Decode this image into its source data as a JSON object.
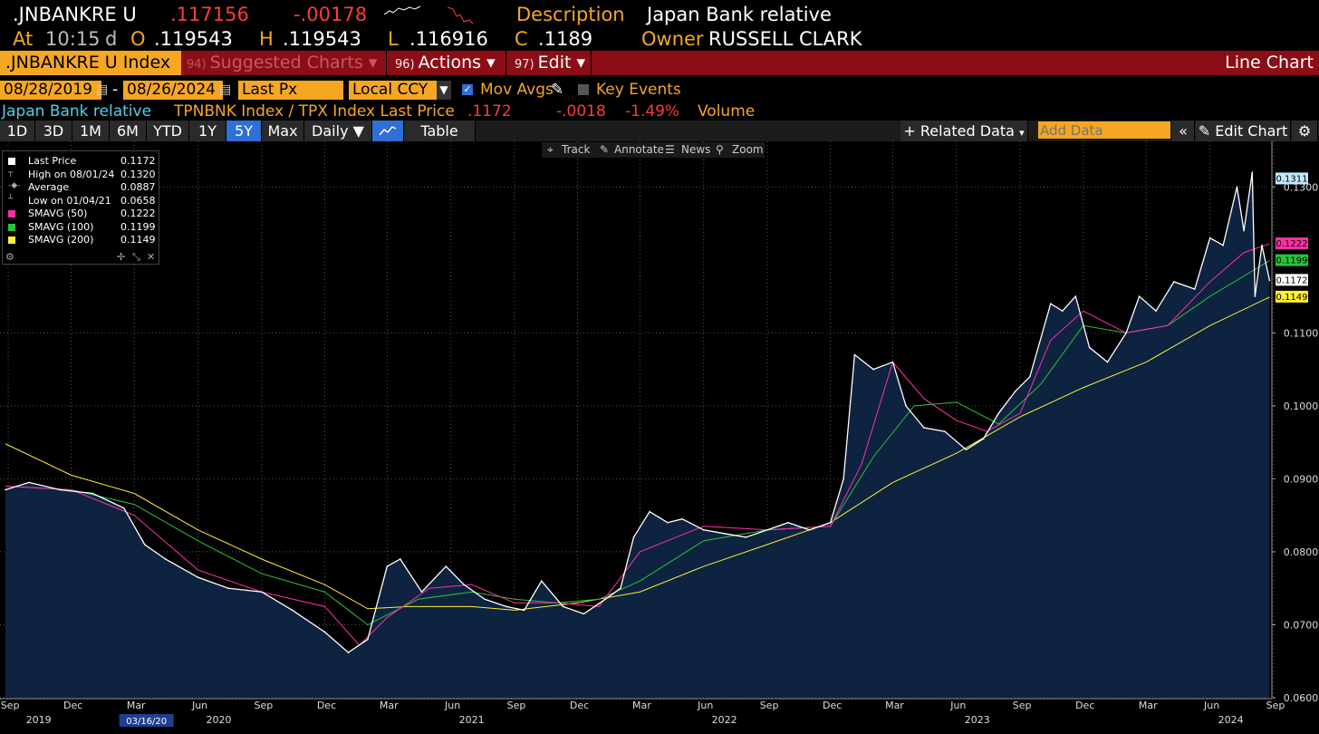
{
  "ticker": {
    "symbol": ".JNBANKRE U",
    "last": ".117156",
    "change": "-.00178",
    "desc_label": "Description",
    "desc_value": "Japan Bank relative",
    "at_label": "At",
    "time": "10:15",
    "time_suffix": "d",
    "open_label": "O",
    "open": ".119543",
    "high_label": "H",
    "high": ".119543",
    "low_label": "L",
    "low": ".116916",
    "close_label": "C",
    "close": ".1189",
    "owner_label": "Owner",
    "owner_value": "RUSSELL CLARK"
  },
  "menu": {
    "security": ".JNBANKRE U Index",
    "suggested_num": "94)",
    "suggested": "Suggested Charts",
    "actions_num": "96)",
    "actions": "Actions",
    "edit_num": "97)",
    "edit": "Edit",
    "chart_type": "Line Chart"
  },
  "controls": {
    "start_date": "08/28/2019",
    "date_sep": "-",
    "end_date": "08/26/2024",
    "field": "Last Px",
    "currency": "Local CCY",
    "mov_avgs": "Mov Avgs",
    "key_events": "Key Events"
  },
  "info": {
    "name": "Japan Bank relative",
    "formula": "TPNBNK Index / TPX Index Last Price",
    "last": ".1172",
    "change": "-.0018",
    "pct": "-1.49%",
    "volume": "Volume"
  },
  "toolbar": {
    "periods": [
      "1D",
      "3D",
      "1M",
      "6M",
      "YTD",
      "1Y",
      "5Y",
      "Max"
    ],
    "active_period": "5Y",
    "frequency": "Daily",
    "table": "Table",
    "related": "Related Data",
    "add_data_placeholder": "Add Data",
    "edit_chart": "Edit Chart"
  },
  "chart_tools": {
    "track": "Track",
    "annotate": "Annotate",
    "news": "News",
    "zoom": "Zoom"
  },
  "legend": [
    {
      "label": "Last Price",
      "value": "0.1172",
      "color": "#ffffff"
    },
    {
      "label": "High on 08/01/24",
      "value": "0.1320",
      "color": ""
    },
    {
      "label": "Average",
      "value": "0.0887",
      "color": ""
    },
    {
      "label": "Low on 01/04/21",
      "value": "0.0658",
      "color": ""
    },
    {
      "label": "SMAVG (50)",
      "value": "0.1222",
      "color": "#ff2fa8"
    },
    {
      "label": "SMAVG (100)",
      "value": "0.1199",
      "color": "#29c23b"
    },
    {
      "label": "SMAVG (200)",
      "value": "0.1149",
      "color": "#ffee33"
    }
  ],
  "colors": {
    "accent": "#f5a623",
    "menu_bg": "#8b0e17",
    "area_fill": "#0d2340",
    "price_line": "#ffffff",
    "sma50": "#ff2fa8",
    "sma100": "#29c23b",
    "sma200": "#ffee33",
    "negative": "#ff3b3b"
  },
  "chart_data": {
    "type": "line",
    "ylim": [
      0.06,
      0.135
    ],
    "yticks": [
      "0.0600",
      "0.0700",
      "0.0800",
      "0.0900",
      "0.1000",
      "0.1100",
      "0.1300"
    ],
    "ytick_values": [
      0.06,
      0.07,
      0.08,
      0.09,
      0.1,
      0.11,
      0.13
    ],
    "xticks": [
      "Sep",
      "Dec",
      "Mar",
      "Jun",
      "Sep",
      "Dec",
      "Mar",
      "Jun",
      "Sep",
      "Dec",
      "Mar",
      "Jun",
      "Sep",
      "Dec",
      "Mar",
      "Jun",
      "Sep",
      "Dec",
      "Mar",
      "Jun",
      "Sep"
    ],
    "xtick_dates": [
      "2019-09-01",
      "2019-12-01",
      "2020-03-01",
      "2020-06-01",
      "2020-09-01",
      "2020-12-01",
      "2021-03-01",
      "2021-06-01",
      "2021-09-01",
      "2021-12-01",
      "2022-03-01",
      "2022-06-01",
      "2022-09-01",
      "2022-12-01",
      "2023-03-01",
      "2023-06-01",
      "2023-09-01",
      "2023-12-01",
      "2024-03-01",
      "2024-06-01",
      "2024-09-01"
    ],
    "years": [
      "2019",
      "2020",
      "2021",
      "2022",
      "2023",
      "2024"
    ],
    "year_dates": [
      "2019-10-15",
      "2020-07-01",
      "2021-07-01",
      "2022-07-01",
      "2023-07-01",
      "2024-07-01"
    ],
    "highlight_date_label": "03/16/20",
    "highlight_date": "2020-03-16",
    "x_range": [
      "2019-08-28",
      "2024-09-01"
    ],
    "series": [
      {
        "name": "Last Price",
        "x": [
          "2019-08-28",
          "2019-10-01",
          "2019-11-15",
          "2020-01-01",
          "2020-02-15",
          "2020-03-16",
          "2020-04-15",
          "2020-06-01",
          "2020-07-15",
          "2020-09-01",
          "2020-10-15",
          "2020-12-01",
          "2021-01-04",
          "2021-02-01",
          "2021-03-01",
          "2021-03-20",
          "2021-04-20",
          "2021-05-25",
          "2021-06-20",
          "2021-07-20",
          "2021-08-20",
          "2021-09-15",
          "2021-10-10",
          "2021-11-10",
          "2021-12-10",
          "2022-01-10",
          "2022-02-01",
          "2022-02-20",
          "2022-03-15",
          "2022-04-10",
          "2022-05-01",
          "2022-06-01",
          "2022-07-01",
          "2022-08-01",
          "2022-09-01",
          "2022-10-01",
          "2022-11-01",
          "2022-12-01",
          "2022-12-20",
          "2023-01-05",
          "2023-02-01",
          "2023-03-01",
          "2023-03-20",
          "2023-04-15",
          "2023-05-15",
          "2023-06-15",
          "2023-07-10",
          "2023-08-01",
          "2023-08-25",
          "2023-09-15",
          "2023-10-15",
          "2023-11-01",
          "2023-11-20",
          "2023-12-10",
          "2024-01-05",
          "2024-02-01",
          "2024-02-20",
          "2024-03-15",
          "2024-04-10",
          "2024-05-10",
          "2024-06-01",
          "2024-06-20",
          "2024-07-10",
          "2024-07-20",
          "2024-08-01",
          "2024-08-05",
          "2024-08-15",
          "2024-08-26"
        ],
        "y": [
          0.0885,
          0.0895,
          0.0885,
          0.088,
          0.086,
          0.081,
          0.079,
          0.0765,
          0.075,
          0.0745,
          0.072,
          0.069,
          0.0662,
          0.068,
          0.078,
          0.079,
          0.0745,
          0.078,
          0.0755,
          0.0735,
          0.0725,
          0.072,
          0.076,
          0.0725,
          0.0715,
          0.0735,
          0.075,
          0.082,
          0.0855,
          0.084,
          0.0845,
          0.083,
          0.0825,
          0.082,
          0.083,
          0.084,
          0.083,
          0.084,
          0.09,
          0.107,
          0.105,
          0.106,
          0.1,
          0.097,
          0.0965,
          0.094,
          0.0955,
          0.099,
          0.102,
          0.104,
          0.114,
          0.113,
          0.115,
          0.108,
          0.106,
          0.11,
          0.115,
          0.113,
          0.117,
          0.116,
          0.123,
          0.122,
          0.13,
          0.124,
          0.132,
          0.115,
          0.122,
          0.1172
        ]
      },
      {
        "name": "SMAVG (50)",
        "x": [
          "2019-08-28",
          "2019-12-01",
          "2020-03-01",
          "2020-06-01",
          "2020-09-01",
          "2020-12-01",
          "2021-01-20",
          "2021-03-01",
          "2021-05-01",
          "2021-07-01",
          "2021-09-01",
          "2021-11-01",
          "2022-01-01",
          "2022-03-01",
          "2022-06-01",
          "2022-09-01",
          "2022-12-01",
          "2023-01-15",
          "2023-03-01",
          "2023-04-15",
          "2023-06-01",
          "2023-07-15",
          "2023-09-01",
          "2023-10-15",
          "2023-12-01",
          "2024-02-01",
          "2024-04-01",
          "2024-06-01",
          "2024-07-20",
          "2024-08-26"
        ],
        "y": [
          0.089,
          0.0885,
          0.085,
          0.0775,
          0.0745,
          0.0725,
          0.0672,
          0.071,
          0.075,
          0.0755,
          0.073,
          0.073,
          0.0725,
          0.08,
          0.0835,
          0.083,
          0.0835,
          0.092,
          0.106,
          0.101,
          0.098,
          0.0965,
          0.099,
          0.109,
          0.113,
          0.11,
          0.111,
          0.117,
          0.121,
          0.1222
        ]
      },
      {
        "name": "SMAVG (100)",
        "x": [
          "2019-08-28",
          "2019-12-01",
          "2020-03-01",
          "2020-06-01",
          "2020-09-01",
          "2020-12-01",
          "2021-02-01",
          "2021-04-15",
          "2021-07-01",
          "2021-09-01",
          "2021-11-01",
          "2022-01-01",
          "2022-03-01",
          "2022-06-01",
          "2022-09-01",
          "2022-12-01",
          "2023-02-01",
          "2023-04-01",
          "2023-06-01",
          "2023-08-01",
          "2023-10-01",
          "2023-12-01",
          "2024-02-01",
          "2024-04-01",
          "2024-06-01",
          "2024-08-26"
        ],
        "y": [
          0.089,
          0.0885,
          0.0865,
          0.0815,
          0.077,
          0.0745,
          0.07,
          0.0735,
          0.0745,
          0.0735,
          0.073,
          0.0735,
          0.076,
          0.0815,
          0.083,
          0.0835,
          0.093,
          0.1,
          0.1005,
          0.0975,
          0.103,
          0.111,
          0.11,
          0.111,
          0.115,
          0.1199
        ]
      },
      {
        "name": "SMAVG (200)",
        "x": [
          "2019-08-28",
          "2019-12-01",
          "2020-03-01",
          "2020-06-01",
          "2020-09-01",
          "2020-12-01",
          "2021-02-01",
          "2021-04-01",
          "2021-07-01",
          "2021-09-01",
          "2021-12-01",
          "2022-03-01",
          "2022-06-01",
          "2022-09-01",
          "2022-12-01",
          "2023-03-01",
          "2023-06-01",
          "2023-09-01",
          "2023-12-01",
          "2024-03-01",
          "2024-06-01",
          "2024-08-26"
        ],
        "y": [
          0.0948,
          0.0905,
          0.088,
          0.083,
          0.079,
          0.0755,
          0.0722,
          0.0725,
          0.0725,
          0.072,
          0.073,
          0.0745,
          0.078,
          0.081,
          0.084,
          0.0895,
          0.0935,
          0.0985,
          0.1025,
          0.106,
          0.111,
          0.1149
        ]
      }
    ],
    "tags": [
      {
        "value": "0.1311",
        "color": "#bfe9ff",
        "y": 0.1311
      },
      {
        "value": "0.1222",
        "color": "#ff2fa8",
        "y": 0.1222
      },
      {
        "value": "0.1199",
        "color": "#29c23b",
        "y": 0.1199
      },
      {
        "value": "0.1172",
        "color": "#ffffff",
        "y": 0.1172
      },
      {
        "value": "0.1149",
        "color": "#ffee33",
        "y": 0.1149
      }
    ],
    "grid": true
  }
}
